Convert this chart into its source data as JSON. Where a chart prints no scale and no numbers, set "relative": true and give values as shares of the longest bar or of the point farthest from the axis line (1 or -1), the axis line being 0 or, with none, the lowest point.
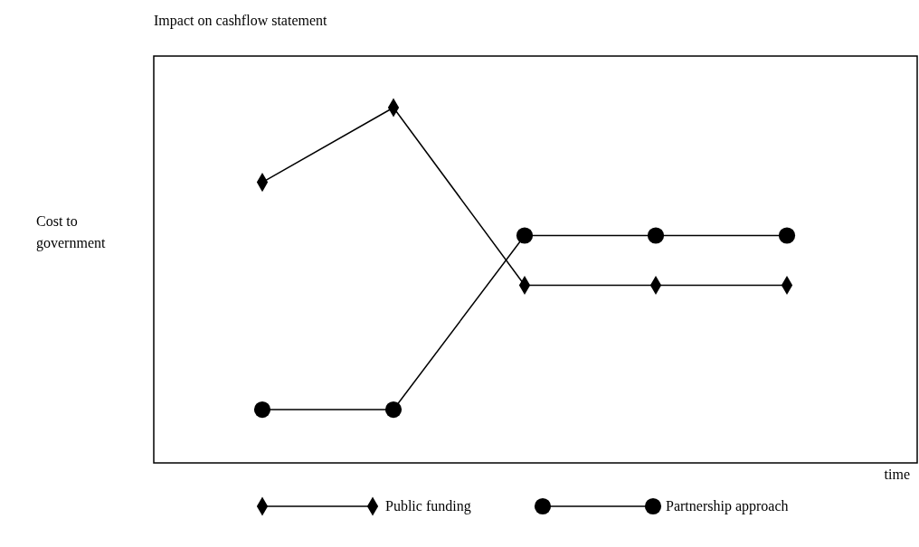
{
  "chart_data": {
    "type": "line",
    "title": "Impact on cashflow statement",
    "xlabel": "time",
    "ylabel": "Cost to government",
    "relative": true,
    "categories": [
      null,
      null,
      null,
      null,
      null
    ],
    "series": [
      {
        "name": "Public funding",
        "color": "#000000",
        "marker": "diamond",
        "values": [
          0.79,
          1,
          0.5,
          0.5,
          0.5
        ]
      },
      {
        "name": "Partnership approach",
        "color": "#000000",
        "marker": "circle",
        "values": [
          0.15,
          0.15,
          0.64,
          0.64,
          0.64
        ]
      }
    ],
    "legend": "bottom",
    "grid": false
  }
}
